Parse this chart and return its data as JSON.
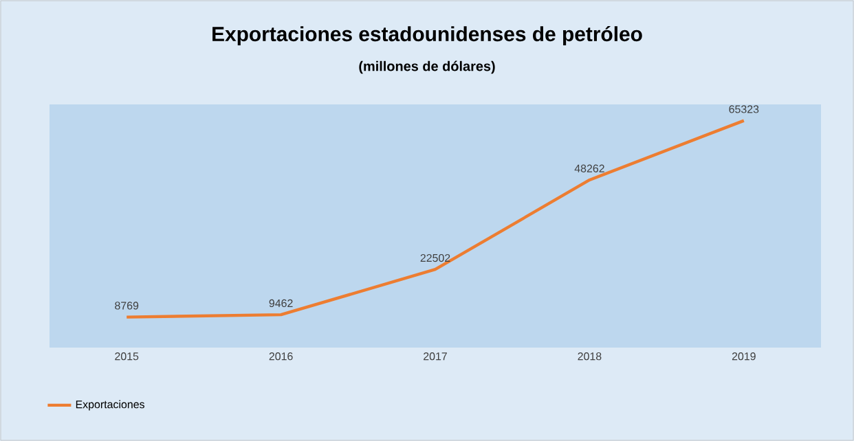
{
  "chart_data": {
    "type": "line",
    "title": "Exportaciones estadounidenses de petróleo",
    "subtitle": "(millones de dólares)",
    "categories": [
      "2015",
      "2016",
      "2017",
      "2018",
      "2019"
    ],
    "series": [
      {
        "name": "Exportaciones",
        "color": "#ed7d31",
        "values": [
          8769,
          9462,
          22502,
          48262,
          65323
        ]
      }
    ],
    "ylim": [
      0,
      70000
    ],
    "data_labels": true,
    "legend": "bottom left",
    "marker": "none",
    "tick_labels": "x"
  }
}
